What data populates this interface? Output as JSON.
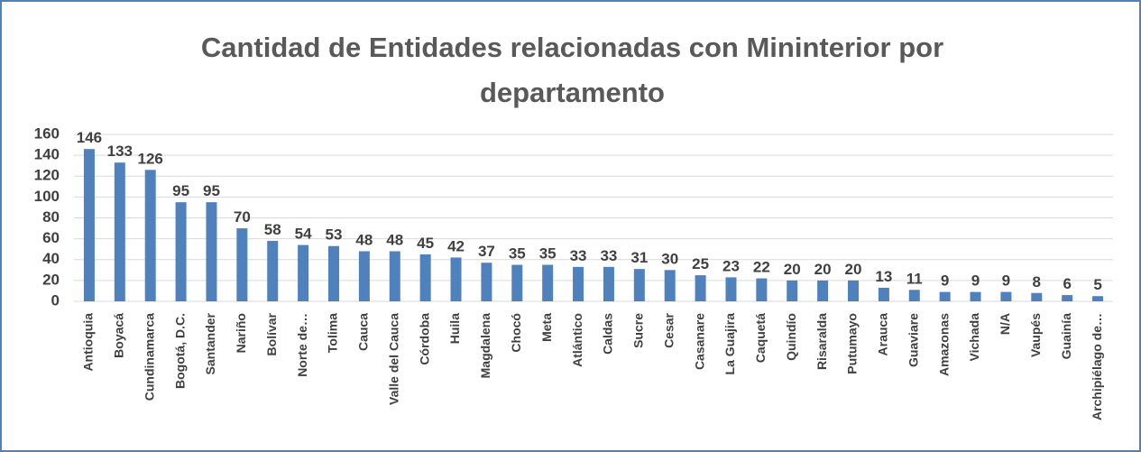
{
  "chart_data": {
    "type": "bar",
    "title": "Cantidad de Entidades relacionadas con Mininterior por departamento",
    "categories": [
      "Antioquia",
      "Boyacá",
      "Cundinamarca",
      "Bogotá, D.C.",
      "Santander",
      "Nariño",
      "Bolívar",
      "Norte de…",
      "Tolima",
      "Cauca",
      "Valle del Cauca",
      "Córdoba",
      "Huila",
      "Magdalena",
      "Chocó",
      "Meta",
      "Atlántico",
      "Caldas",
      "Sucre",
      "Cesar",
      "Casanare",
      "La Guajira",
      "Caquetá",
      "Quindío",
      "Risaralda",
      "Putumayo",
      "Arauca",
      "Guaviare",
      "Amazonas",
      "Vichada",
      "N/A",
      "Vaupés",
      "Guainía",
      "Archipiélago de…"
    ],
    "values": [
      146,
      133,
      126,
      95,
      95,
      70,
      58,
      54,
      53,
      48,
      48,
      45,
      42,
      37,
      35,
      35,
      33,
      33,
      31,
      30,
      25,
      23,
      22,
      20,
      20,
      20,
      13,
      11,
      9,
      9,
      9,
      8,
      6,
      5
    ],
    "color": "#4f81bd",
    "ylim": [
      0,
      160
    ],
    "yticks": [
      0,
      20,
      40,
      60,
      80,
      100,
      120,
      140,
      160
    ],
    "grid": true
  }
}
